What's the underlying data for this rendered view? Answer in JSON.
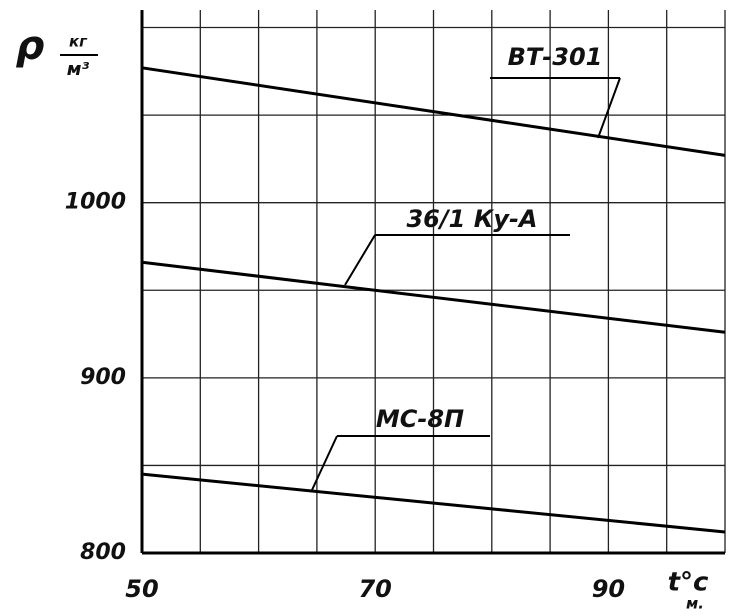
{
  "chart_data": {
    "type": "line",
    "y_symbol": "ρ",
    "y_unit_top": "кг",
    "y_unit_bottom": "м³",
    "x_symbol": "t°c",
    "x_subscript": "м.",
    "x": [
      50,
      100
    ],
    "series": [
      {
        "name": "ВТ-301",
        "color": "#000000",
        "values": [
          1077,
          1027
        ]
      },
      {
        "name": "36/1 Ку-А",
        "color": "#000000",
        "values": [
          966,
          926
        ]
      },
      {
        "name": "МС-8П",
        "color": "#000000",
        "values": [
          845,
          812
        ]
      }
    ],
    "xlim": [
      50,
      100
    ],
    "ylim": [
      800,
      1110
    ],
    "xticks": [
      50,
      70,
      90
    ],
    "yticks": [
      800,
      900,
      1000
    ],
    "xgrid": [
      55,
      60,
      65,
      70,
      75,
      80,
      85,
      90,
      95,
      100
    ],
    "ygrid": [
      850,
      900,
      950,
      1000,
      1050,
      1100
    ],
    "grid": true
  }
}
